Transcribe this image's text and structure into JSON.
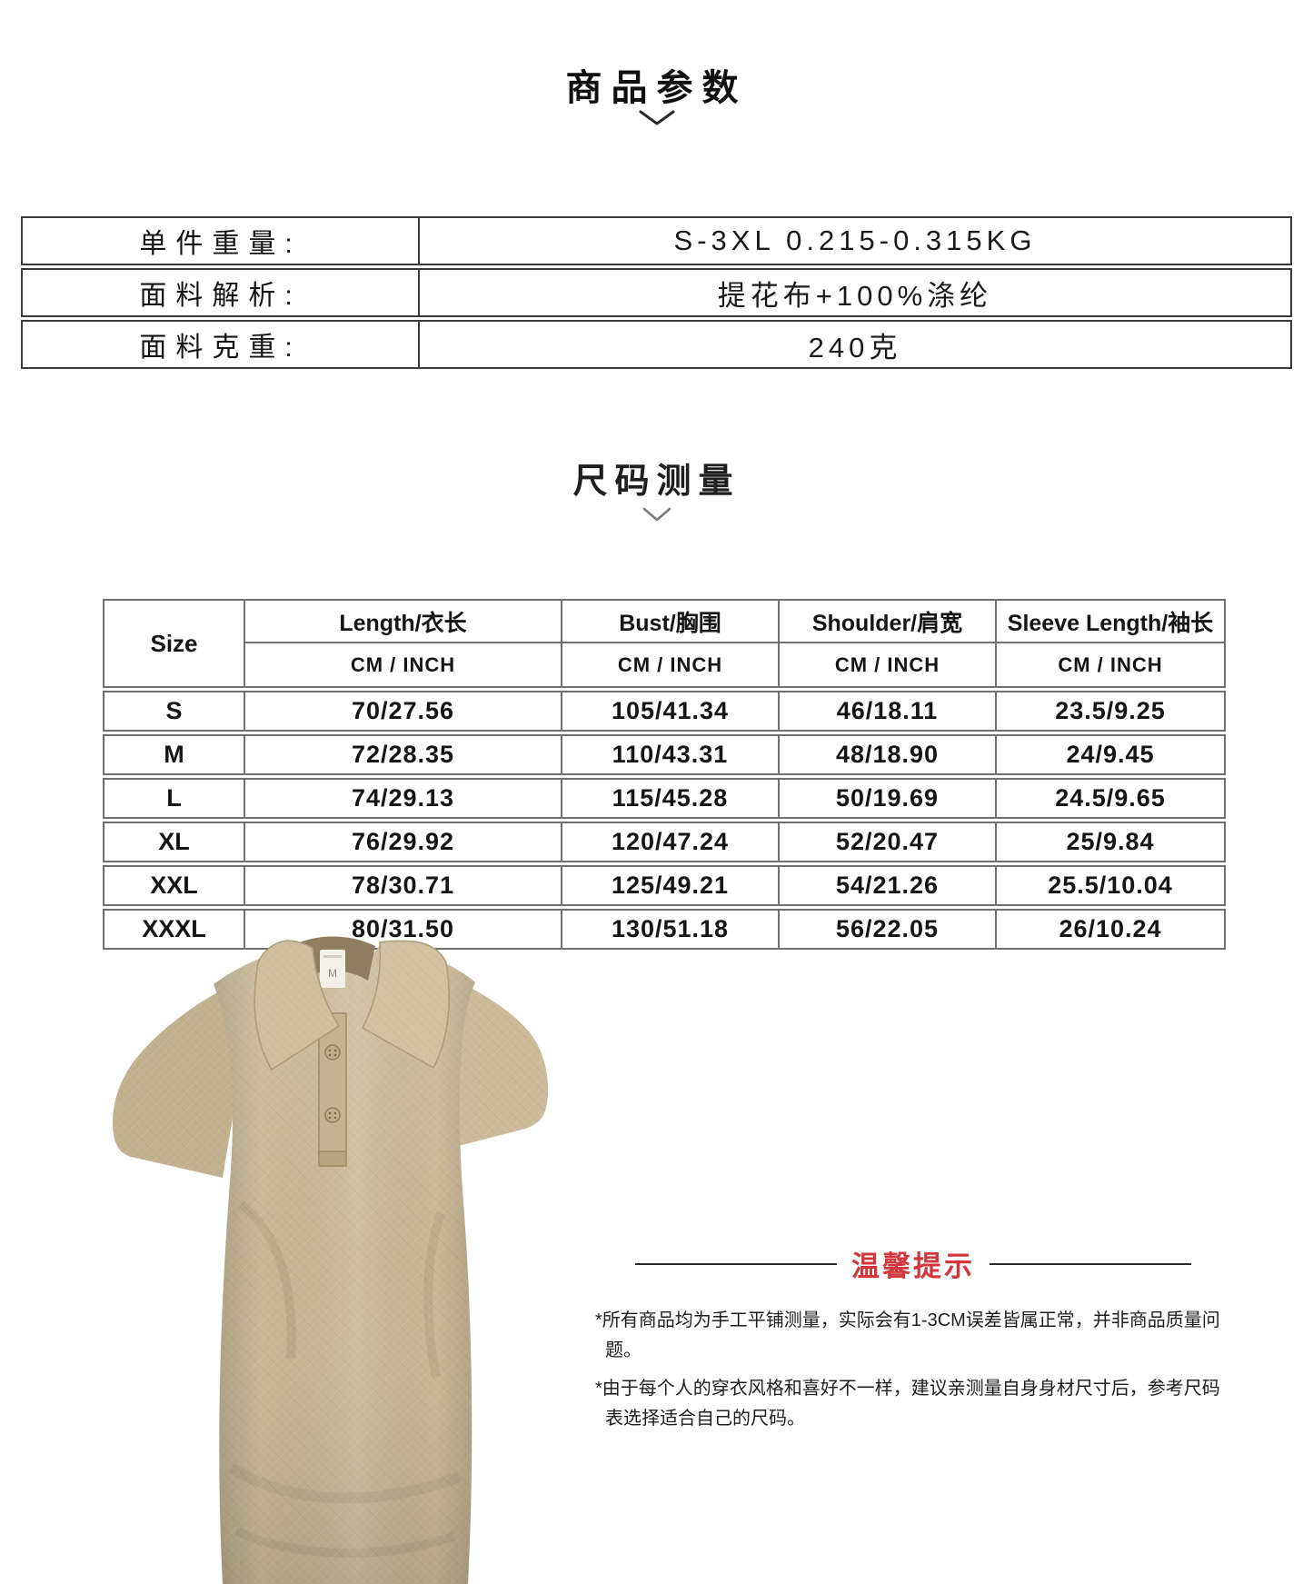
{
  "colors": {
    "accent_red": "#d2353c",
    "shirt_khaki": "#c8b896",
    "table_border_dark": "#3a3a3a",
    "table_border_gray": "#6f6f6f"
  },
  "sections": {
    "params": {
      "title": "商品参数"
    },
    "size": {
      "title": "尺码测量"
    }
  },
  "params_table": {
    "rows": [
      {
        "label": "单件重量:",
        "value": "S-3XL 0.215-0.315KG"
      },
      {
        "label": "面料解析:",
        "value": "提花布+100%涤纶"
      },
      {
        "label": "面料克重:",
        "value": "240克"
      }
    ]
  },
  "size_chart": {
    "corner_header": "Size",
    "unit_header": "CM / INCH",
    "columns": [
      "Length/衣长",
      "Bust/胸围",
      "Shoulder/肩宽",
      "Sleeve Length/袖长"
    ],
    "rows": [
      {
        "size": "S",
        "values": [
          "70/27.56",
          "105/41.34",
          "46/18.11",
          "23.5/9.25"
        ]
      },
      {
        "size": "M",
        "values": [
          "72/28.35",
          "110/43.31",
          "48/18.90",
          "24/9.45"
        ]
      },
      {
        "size": "L",
        "values": [
          "74/29.13",
          "115/45.28",
          "50/19.69",
          "24.5/9.65"
        ]
      },
      {
        "size": "XL",
        "values": [
          "76/29.92",
          "120/47.24",
          "52/20.47",
          "25/9.84"
        ]
      },
      {
        "size": "XXL",
        "values": [
          "78/30.71",
          "125/49.21",
          "54/21.26",
          "25.5/10.04"
        ]
      },
      {
        "size": "XXXL",
        "values": [
          "80/31.50",
          "130/51.18",
          "56/22.05",
          "26/10.24"
        ]
      }
    ]
  },
  "product_photo": {
    "description": "khaki jacquard textured short-sleeve polo shirt",
    "inner_label": "M"
  },
  "tips": {
    "title": "温馨提示",
    "items": [
      "*所有商品均为手工平铺测量，实际会有1-3CM误差皆属正常，并非商品质量问题。",
      "*由于每个人的穿衣风格和喜好不一样，建议亲测量自身身材尺寸后，参考尺码表选择适合自己的尺码。"
    ]
  }
}
